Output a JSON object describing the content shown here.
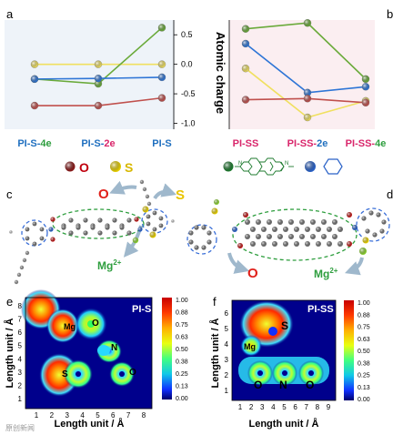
{
  "panels": {
    "a": "a",
    "b": "b",
    "c": "c",
    "d": "d",
    "e": "e",
    "f": "f"
  },
  "colors": {
    "red": "#c0504d",
    "yellow": "#f0e060",
    "green": "#6aaa3a",
    "blue": "#2e75d6",
    "pink_label": "#d9266b",
    "blue_label": "#1f6fbf",
    "dashed_green": "#2e9e3e",
    "dashed_blue": "#3a6fd8",
    "arrow": "#9fb8cc"
  },
  "chart_data": [
    {
      "type": "line",
      "panel": "a",
      "categories": [
        "PI-S-4e",
        "PI-S-2e",
        "PI-S"
      ],
      "category_label_parts": [
        [
          "PI-S-",
          "4e"
        ],
        [
          "PI-S-",
          "2e"
        ],
        [
          "PI-S",
          ""
        ]
      ],
      "category_label_colors": [
        [
          "#1f6fbf",
          "#2e9e3e"
        ],
        [
          "#1f6fbf",
          "#d9266b"
        ],
        [
          "#1f6fbf",
          "#1f6fbf"
        ]
      ],
      "ylabel": "Atomic charge",
      "ylim": [
        -1.1,
        0.75
      ],
      "yticks": [
        0.5,
        0.0,
        -0.5,
        -1.0
      ],
      "ytick_labels": [
        "0.5",
        "0.0",
        "-0.5",
        "-1.0"
      ],
      "grid": false,
      "series": [
        {
          "color": "#f0e060",
          "values": [
            0.0,
            0.0,
            0.0
          ]
        },
        {
          "color": "#6aaa3a",
          "values": [
            -0.25,
            -0.33,
            0.62
          ]
        },
        {
          "color": "#2e75d6",
          "values": [
            -0.25,
            -0.24,
            -0.22
          ]
        },
        {
          "color": "#c0504d",
          "values": [
            -0.7,
            -0.7,
            -0.57
          ]
        }
      ]
    },
    {
      "type": "line",
      "panel": "b",
      "categories": [
        "PI-SS",
        "PI-SS-2e",
        "PI-SS-4e"
      ],
      "category_label_parts": [
        [
          "PI-SS",
          ""
        ],
        [
          "PI-SS-",
          "2e"
        ],
        [
          "PI-SS-",
          "4e"
        ]
      ],
      "category_label_colors": [
        [
          "#d9266b",
          "#d9266b"
        ],
        [
          "#d9266b",
          "#1f6fbf"
        ],
        [
          "#d9266b",
          "#2e9e3e"
        ]
      ],
      "ylim": [
        -1.1,
        0.75
      ],
      "grid": false,
      "series": [
        {
          "color": "#6aaa3a",
          "values": [
            0.6,
            0.7,
            -0.25
          ]
        },
        {
          "color": "#2e75d6",
          "values": [
            0.35,
            -0.48,
            -0.38
          ]
        },
        {
          "color": "#f0e060",
          "values": [
            -0.07,
            -0.9,
            -0.62
          ]
        },
        {
          "color": "#c0504d",
          "values": [
            -0.6,
            -0.58,
            -0.65
          ]
        }
      ]
    },
    {
      "type": "heatmap",
      "panel": "e",
      "title": "PI-S",
      "xlabel": "Length unit / Å",
      "ylabel": "Length unit / Å",
      "xticks": [
        "1",
        "2",
        "3",
        "4",
        "5",
        "6",
        "7",
        "8"
      ],
      "yticks": [
        "1",
        "2",
        "3",
        "4",
        "5",
        "6",
        "7",
        "8"
      ],
      "colorbar": [
        "1.00",
        "0.88",
        "0.75",
        "0.63",
        "0.50",
        "0.38",
        "0.25",
        "0.13",
        "0.00"
      ],
      "atom_labels": [
        "Mg",
        "O",
        "N",
        "S",
        "O"
      ]
    },
    {
      "type": "heatmap",
      "panel": "f",
      "title": "PI-SS",
      "xlabel": "Length unit / Å",
      "ylabel": "Length unit / Å",
      "xticks": [
        "1",
        "2",
        "3",
        "4",
        "5",
        "6",
        "7",
        "8",
        "9"
      ],
      "yticks": [
        "1",
        "2",
        "3",
        "4",
        "5",
        "6"
      ],
      "colorbar": [
        "1.00",
        "0.88",
        "0.75",
        "0.63",
        "0.50",
        "0.38",
        "0.25",
        "0.13",
        "0.00"
      ],
      "atom_labels": [
        "S",
        "Mg",
        "O",
        "N",
        "O"
      ]
    }
  ],
  "legend": {
    "o_label": "O",
    "s_label": "S",
    "n_label": "N",
    "o_color": "#8b1a1a",
    "s_color": "#e8d000",
    "n_color": "#1d7a2e",
    "c_color": "#2a62c8"
  },
  "structure_labels": {
    "c_o": "O",
    "c_s": "S",
    "c_mg": "Mg",
    "c_mg_sup": "2+",
    "d_o": "O",
    "d_mg": "Mg",
    "d_mg_sup": "2+"
  },
  "watermark": "原创新闻"
}
